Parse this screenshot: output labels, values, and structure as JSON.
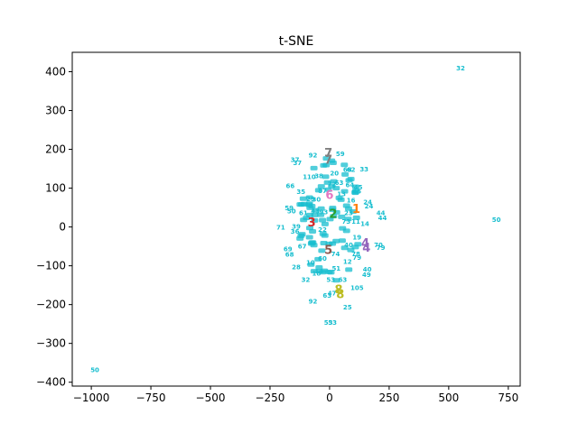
{
  "chart_data": {
    "type": "scatter",
    "title": "t-SNE",
    "xlabel": "",
    "ylabel": "",
    "xlim": [
      -1080,
      800
    ],
    "ylim": [
      -410,
      450
    ],
    "xticks": [
      -1000,
      -750,
      -500,
      -250,
      0,
      250,
      500,
      750
    ],
    "yticks": [
      -400,
      -300,
      -200,
      -100,
      0,
      100,
      200,
      300,
      400
    ],
    "xtick_labels": [
      "−1000",
      "−750",
      "−500",
      "−250",
      "0",
      "250",
      "500",
      "750"
    ],
    "ytick_labels": [
      "−400",
      "−300",
      "−200",
      "−100",
      "0",
      "100",
      "200",
      "300",
      "400"
    ],
    "grid": false,
    "colors": {
      "cyan": "#17becf",
      "orange": "#ff7f0e",
      "green": "#2ca02c",
      "red": "#d62728",
      "purple": "#9467bd",
      "brown": "#8c564b",
      "pink": "#e377c2",
      "gray": "#7f7f7f",
      "olive": "#bcbd22"
    },
    "large_points": [
      {
        "label": "7",
        "x": -5,
        "y": 192,
        "color": "gray"
      },
      {
        "label": "7",
        "x": -5,
        "y": 175,
        "color": "gray"
      },
      {
        "label": "6",
        "x": 0,
        "y": 84,
        "color": "pink"
      },
      {
        "label": "2",
        "x": 15,
        "y": 35,
        "color": "green"
      },
      {
        "label": "1",
        "x": 112,
        "y": 48,
        "color": "orange"
      },
      {
        "label": "3",
        "x": -75,
        "y": 13,
        "color": "red"
      },
      {
        "label": "4",
        "x": 150,
        "y": -40,
        "color": "purple"
      },
      {
        "label": "4",
        "x": 155,
        "y": -52,
        "color": "purple"
      },
      {
        "label": "5",
        "x": -5,
        "y": -58,
        "color": "brown"
      },
      {
        "label": "8",
        "x": 38,
        "y": -160,
        "color": "olive"
      },
      {
        "label": "8",
        "x": 45,
        "y": -172,
        "color": "olive"
      }
    ],
    "small_points": [
      {
        "label": "32",
        "x": 550,
        "y": 410
      },
      {
        "label": "50",
        "x": 700,
        "y": 20
      },
      {
        "label": "50",
        "x": -985,
        "y": -367
      },
      {
        "label": "59",
        "x": 45,
        "y": 190
      },
      {
        "label": "92",
        "x": -70,
        "y": 186
      },
      {
        "label": "37",
        "x": -145,
        "y": 175
      },
      {
        "label": "37",
        "x": -135,
        "y": 166
      },
      {
        "label": "33",
        "x": 145,
        "y": 150
      },
      {
        "label": "68",
        "x": 75,
        "y": 149
      },
      {
        "label": "62",
        "x": 90,
        "y": 149
      },
      {
        "label": "20",
        "x": 20,
        "y": 140
      },
      {
        "label": "110",
        "x": -85,
        "y": 130
      },
      {
        "label": "38",
        "x": -45,
        "y": 133
      },
      {
        "label": "72",
        "x": 10,
        "y": 112
      },
      {
        "label": "63",
        "x": 40,
        "y": 115
      },
      {
        "label": "64",
        "x": 85,
        "y": 110
      },
      {
        "label": "45",
        "x": 120,
        "y": 104
      },
      {
        "label": "66",
        "x": -165,
        "y": 107
      },
      {
        "label": "87",
        "x": -30,
        "y": 94
      },
      {
        "label": "35",
        "x": -120,
        "y": 92
      },
      {
        "label": "45",
        "x": 115,
        "y": 93
      },
      {
        "label": "13",
        "x": 50,
        "y": 86
      },
      {
        "label": "29",
        "x": -80,
        "y": 73
      },
      {
        "label": "30",
        "x": -55,
        "y": 72
      },
      {
        "label": "16",
        "x": 90,
        "y": 70
      },
      {
        "label": "24",
        "x": 160,
        "y": 65
      },
      {
        "label": "24",
        "x": 165,
        "y": 55
      },
      {
        "label": "59",
        "x": -170,
        "y": 50
      },
      {
        "label": "50",
        "x": -160,
        "y": 42
      },
      {
        "label": "61",
        "x": -110,
        "y": 38
      },
      {
        "label": "43",
        "x": -60,
        "y": 42
      },
      {
        "label": "93",
        "x": -25,
        "y": 40
      },
      {
        "label": "23",
        "x": 80,
        "y": 38
      },
      {
        "label": "44",
        "x": 215,
        "y": 38
      },
      {
        "label": "44",
        "x": 222,
        "y": 25
      },
      {
        "label": "73",
        "x": 70,
        "y": 15
      },
      {
        "label": "11",
        "x": 110,
        "y": 15
      },
      {
        "label": "14",
        "x": 148,
        "y": 10
      },
      {
        "label": "71",
        "x": -205,
        "y": 0
      },
      {
        "label": "39",
        "x": -140,
        "y": 2
      },
      {
        "label": "36",
        "x": -145,
        "y": -10
      },
      {
        "label": "22",
        "x": -30,
        "y": -5
      },
      {
        "label": "19",
        "x": 115,
        "y": -25
      },
      {
        "label": "70",
        "x": 205,
        "y": -45
      },
      {
        "label": "79",
        "x": 215,
        "y": -52
      },
      {
        "label": "40",
        "x": 80,
        "y": -45
      },
      {
        "label": "67",
        "x": -115,
        "y": -48
      },
      {
        "label": "69",
        "x": -175,
        "y": -56
      },
      {
        "label": "68",
        "x": -168,
        "y": -70
      },
      {
        "label": "74",
        "x": 25,
        "y": -68
      },
      {
        "label": "78",
        "x": 110,
        "y": -68
      },
      {
        "label": "79",
        "x": 115,
        "y": -78
      },
      {
        "label": "60",
        "x": -30,
        "y": -80
      },
      {
        "label": "12",
        "x": 75,
        "y": -88
      },
      {
        "label": "10",
        "x": -80,
        "y": -90
      },
      {
        "label": "28",
        "x": -140,
        "y": -102
      },
      {
        "label": "51",
        "x": 28,
        "y": -105
      },
      {
        "label": "40",
        "x": 158,
        "y": -108
      },
      {
        "label": "49",
        "x": 155,
        "y": -122
      },
      {
        "label": "18",
        "x": -55,
        "y": -118
      },
      {
        "label": "32",
        "x": -100,
        "y": -135
      },
      {
        "label": "53",
        "x": 5,
        "y": -135
      },
      {
        "label": "63",
        "x": 55,
        "y": -135
      },
      {
        "label": "105",
        "x": 115,
        "y": -155
      },
      {
        "label": "47",
        "x": 10,
        "y": -170
      },
      {
        "label": "63",
        "x": -10,
        "y": -175
      },
      {
        "label": "92",
        "x": -70,
        "y": -190
      },
      {
        "label": "25",
        "x": 75,
        "y": -205
      },
      {
        "label": "53",
        "x": -5,
        "y": -245
      },
      {
        "label": "53",
        "x": 12,
        "y": -245
      }
    ],
    "cluster_filler": {
      "x": [
        -130,
        130
      ],
      "y": [
        -150,
        180
      ],
      "count": 90
    }
  }
}
